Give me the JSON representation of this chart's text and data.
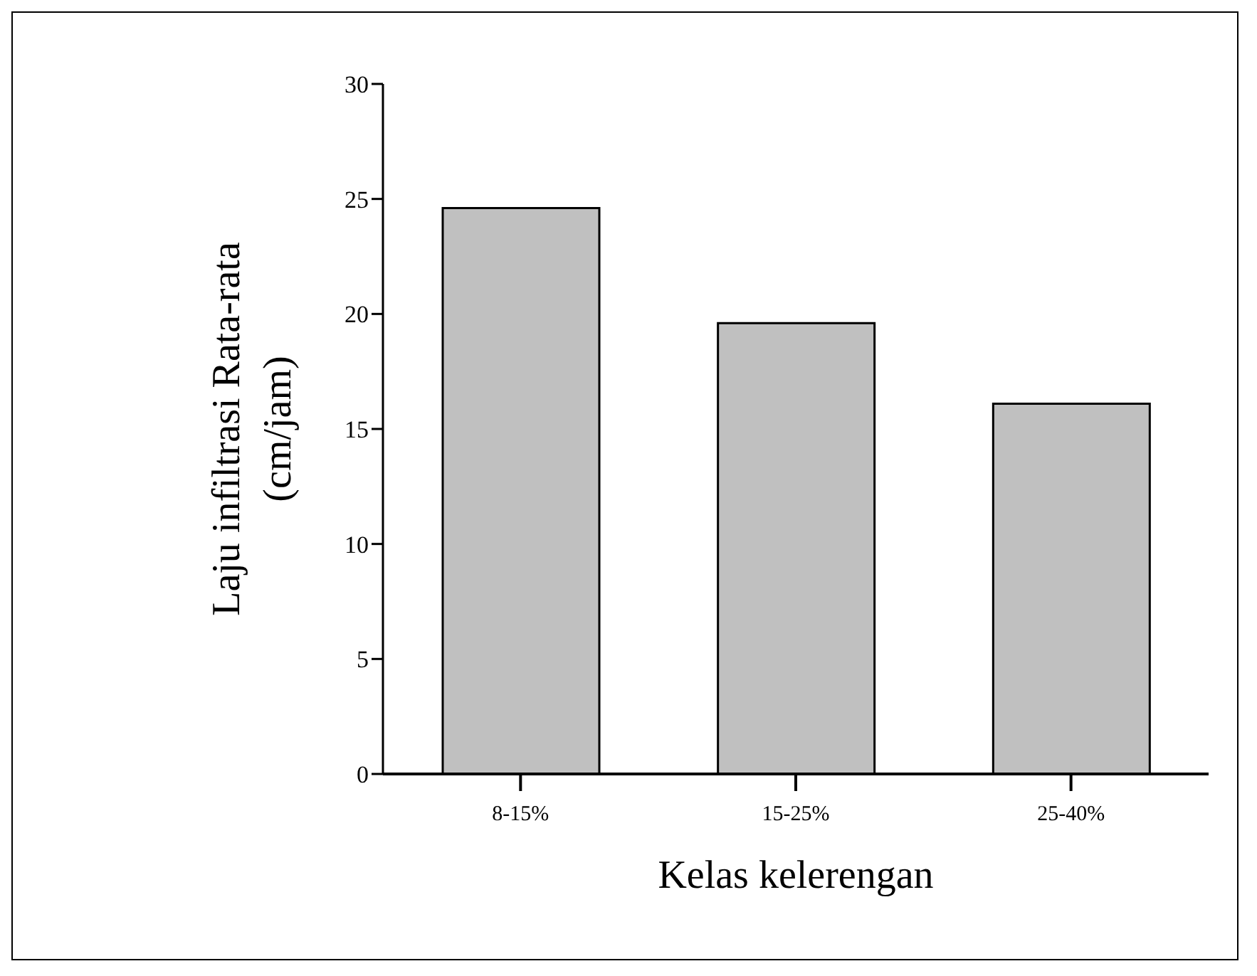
{
  "chart_data": {
    "type": "bar",
    "xlabel": "Kelas kelerengan",
    "ylabel": "Laju infiltrasi Rata-rata (cm/jam)",
    "categories": [
      "8-15%",
      "15-25%",
      "25-40%"
    ],
    "values": [
      24.6,
      19.6,
      16.1
    ],
    "color": "#c0c0c0",
    "ylim": [
      0,
      30
    ],
    "yticks": [
      0,
      5,
      10,
      15,
      20,
      25,
      30
    ],
    "grid": false,
    "legend": false
  }
}
